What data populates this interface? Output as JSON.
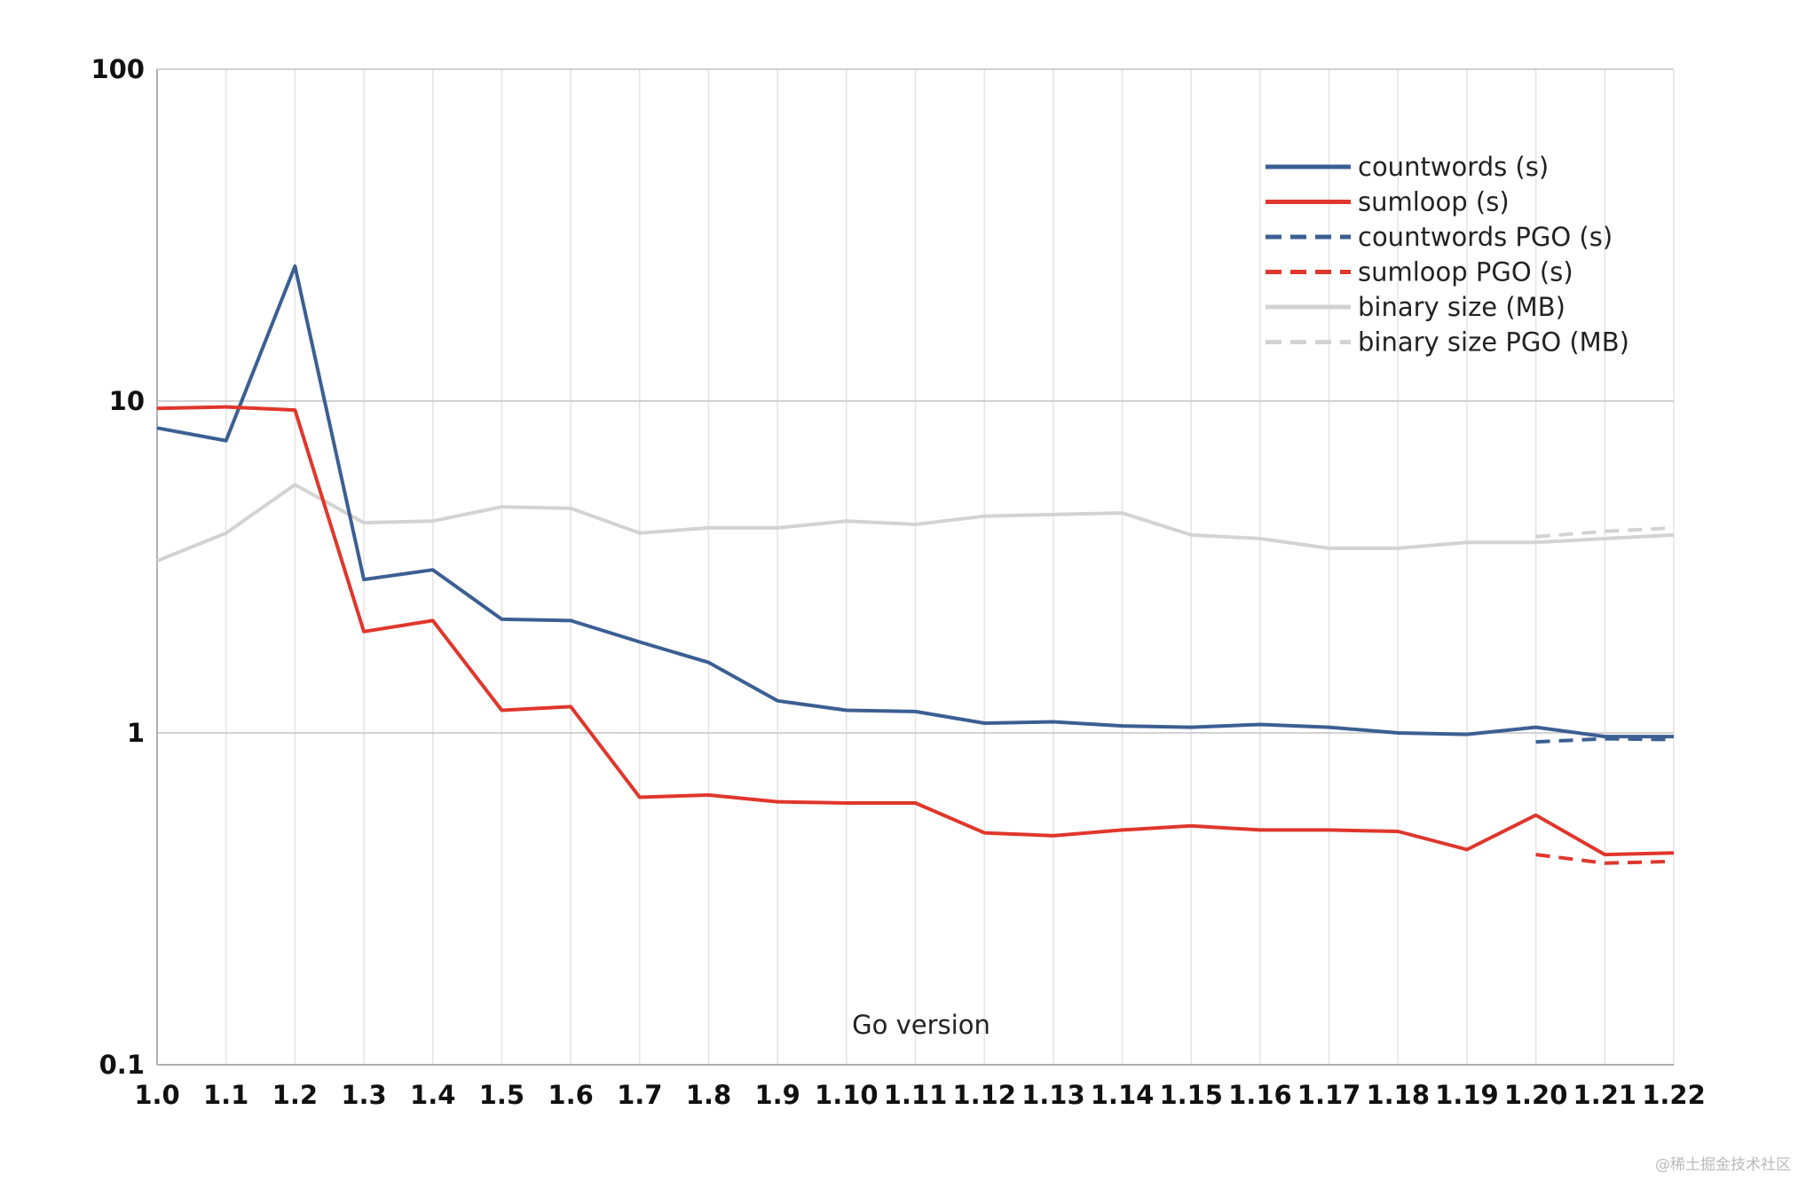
{
  "chart_data": {
    "type": "line",
    "xlabel": "Go version",
    "ylabel": "",
    "yscale": "log",
    "ylim": [
      0.1,
      100
    ],
    "y_ticks": [
      "0.1",
      "1",
      "10",
      "100"
    ],
    "categories": [
      "1.0",
      "1.1",
      "1.2",
      "1.3",
      "1.4",
      "1.5",
      "1.6",
      "1.7",
      "1.8",
      "1.9",
      "1.10",
      "1.11",
      "1.12",
      "1.13",
      "1.14",
      "1.15",
      "1.16",
      "1.17",
      "1.18",
      "1.19",
      "1.20",
      "1.21",
      "1.22"
    ],
    "grid": true,
    "legend_position": "top-right",
    "series": [
      {
        "name": "countwords (s)",
        "color": "#3b5f93",
        "dash": false,
        "values": [
          8.3,
          7.6,
          25.5,
          2.9,
          3.1,
          2.2,
          2.18,
          1.88,
          1.63,
          1.25,
          1.17,
          1.16,
          1.07,
          1.08,
          1.05,
          1.04,
          1.06,
          1.04,
          1.0,
          0.99,
          1.04,
          0.975,
          0.975
        ]
      },
      {
        "name": "sumloop (s)",
        "color": "#e0362c",
        "dash": false,
        "values": [
          9.5,
          9.6,
          9.4,
          2.02,
          2.18,
          1.17,
          1.2,
          0.64,
          0.65,
          0.62,
          0.615,
          0.615,
          0.5,
          0.49,
          0.51,
          0.525,
          0.51,
          0.51,
          0.505,
          0.445,
          0.565,
          0.43,
          0.435
        ]
      },
      {
        "name": "countwords PGO (s)",
        "color": "#3b5f93",
        "dash": true,
        "values": [
          null,
          null,
          null,
          null,
          null,
          null,
          null,
          null,
          null,
          null,
          null,
          null,
          null,
          null,
          null,
          null,
          null,
          null,
          null,
          null,
          0.94,
          0.96,
          0.955
        ]
      },
      {
        "name": "sumloop PGO (s)",
        "color": "#e0362c",
        "dash": true,
        "values": [
          null,
          null,
          null,
          null,
          null,
          null,
          null,
          null,
          null,
          null,
          null,
          null,
          null,
          null,
          null,
          null,
          null,
          null,
          null,
          null,
          0.43,
          0.405,
          0.41
        ]
      },
      {
        "name": "binary size (MB)",
        "color": "#d3d3d3",
        "dash": false,
        "values": [
          3.3,
          4.0,
          5.6,
          4.3,
          4.35,
          4.8,
          4.75,
          4.0,
          4.15,
          4.15,
          4.35,
          4.25,
          4.5,
          4.55,
          4.6,
          3.95,
          3.85,
          3.6,
          3.6,
          3.75,
          3.75,
          3.85,
          3.95
        ]
      },
      {
        "name": "binary size PGO (MB)",
        "color": "#d3d3d3",
        "dash": true,
        "values": [
          null,
          null,
          null,
          null,
          null,
          null,
          null,
          null,
          null,
          null,
          null,
          null,
          null,
          null,
          null,
          null,
          null,
          null,
          null,
          null,
          3.9,
          4.05,
          4.15
        ]
      }
    ]
  },
  "watermark": "@稀土掘金技术社区"
}
